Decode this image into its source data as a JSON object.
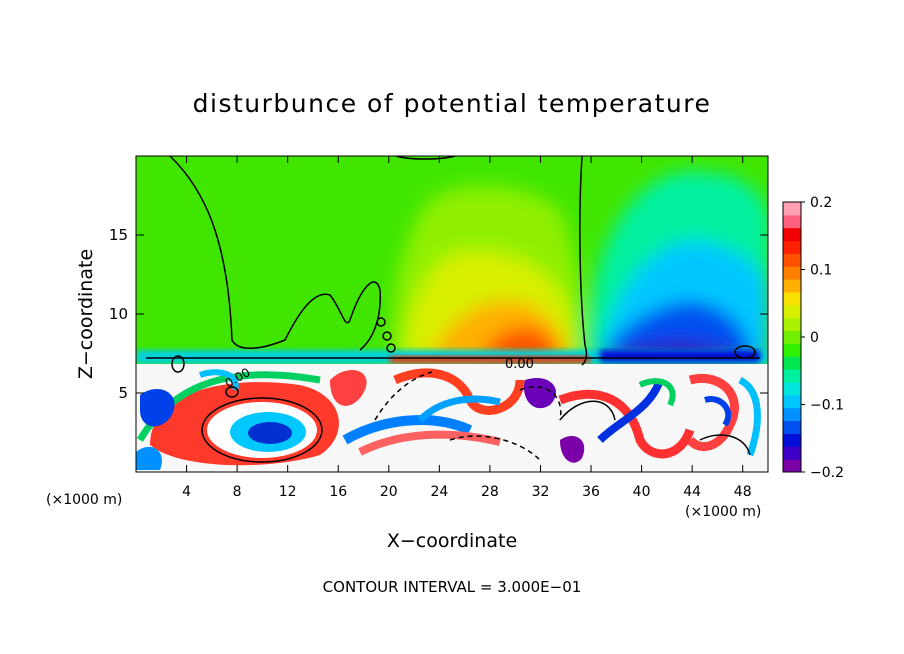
{
  "chart_data": {
    "type": "heatmap",
    "title": "disturbunce of potential temperature",
    "xlabel": "X−coordinate",
    "ylabel": "Z−coordinate",
    "x_unit_label": "(×1000 m)",
    "x_unit_label_right": "(×1000 m)",
    "x_ticks": [
      "4",
      "8",
      "12",
      "16",
      "20",
      "24",
      "28",
      "32",
      "36",
      "40",
      "44",
      "48"
    ],
    "y_ticks": [
      "5",
      "10",
      "15"
    ],
    "xlim": [
      0,
      50
    ],
    "ylim": [
      0,
      20
    ],
    "colorbar": {
      "range": [
        -0.2,
        0.2
      ],
      "ticks": [
        "0.2",
        "0.1",
        "0",
        "−0.1",
        "−0.2"
      ],
      "colors": [
        "#7b00a8",
        "#3a00c8",
        "#0010d8",
        "#0050f0",
        "#0090ff",
        "#00c8ff",
        "#00e6dc",
        "#00f0a0",
        "#00e650",
        "#30f000",
        "#70f000",
        "#a8f000",
        "#d8f000",
        "#f8e000",
        "#ffb000",
        "#ff8000",
        "#ff5000",
        "#ff2000",
        "#f00000",
        "#ff6080",
        "#ffa0b0"
      ]
    },
    "contour_label": "0.00",
    "footer": "CONTOUR INTERVAL = 3.000E−01",
    "legend_placement": "right"
  }
}
